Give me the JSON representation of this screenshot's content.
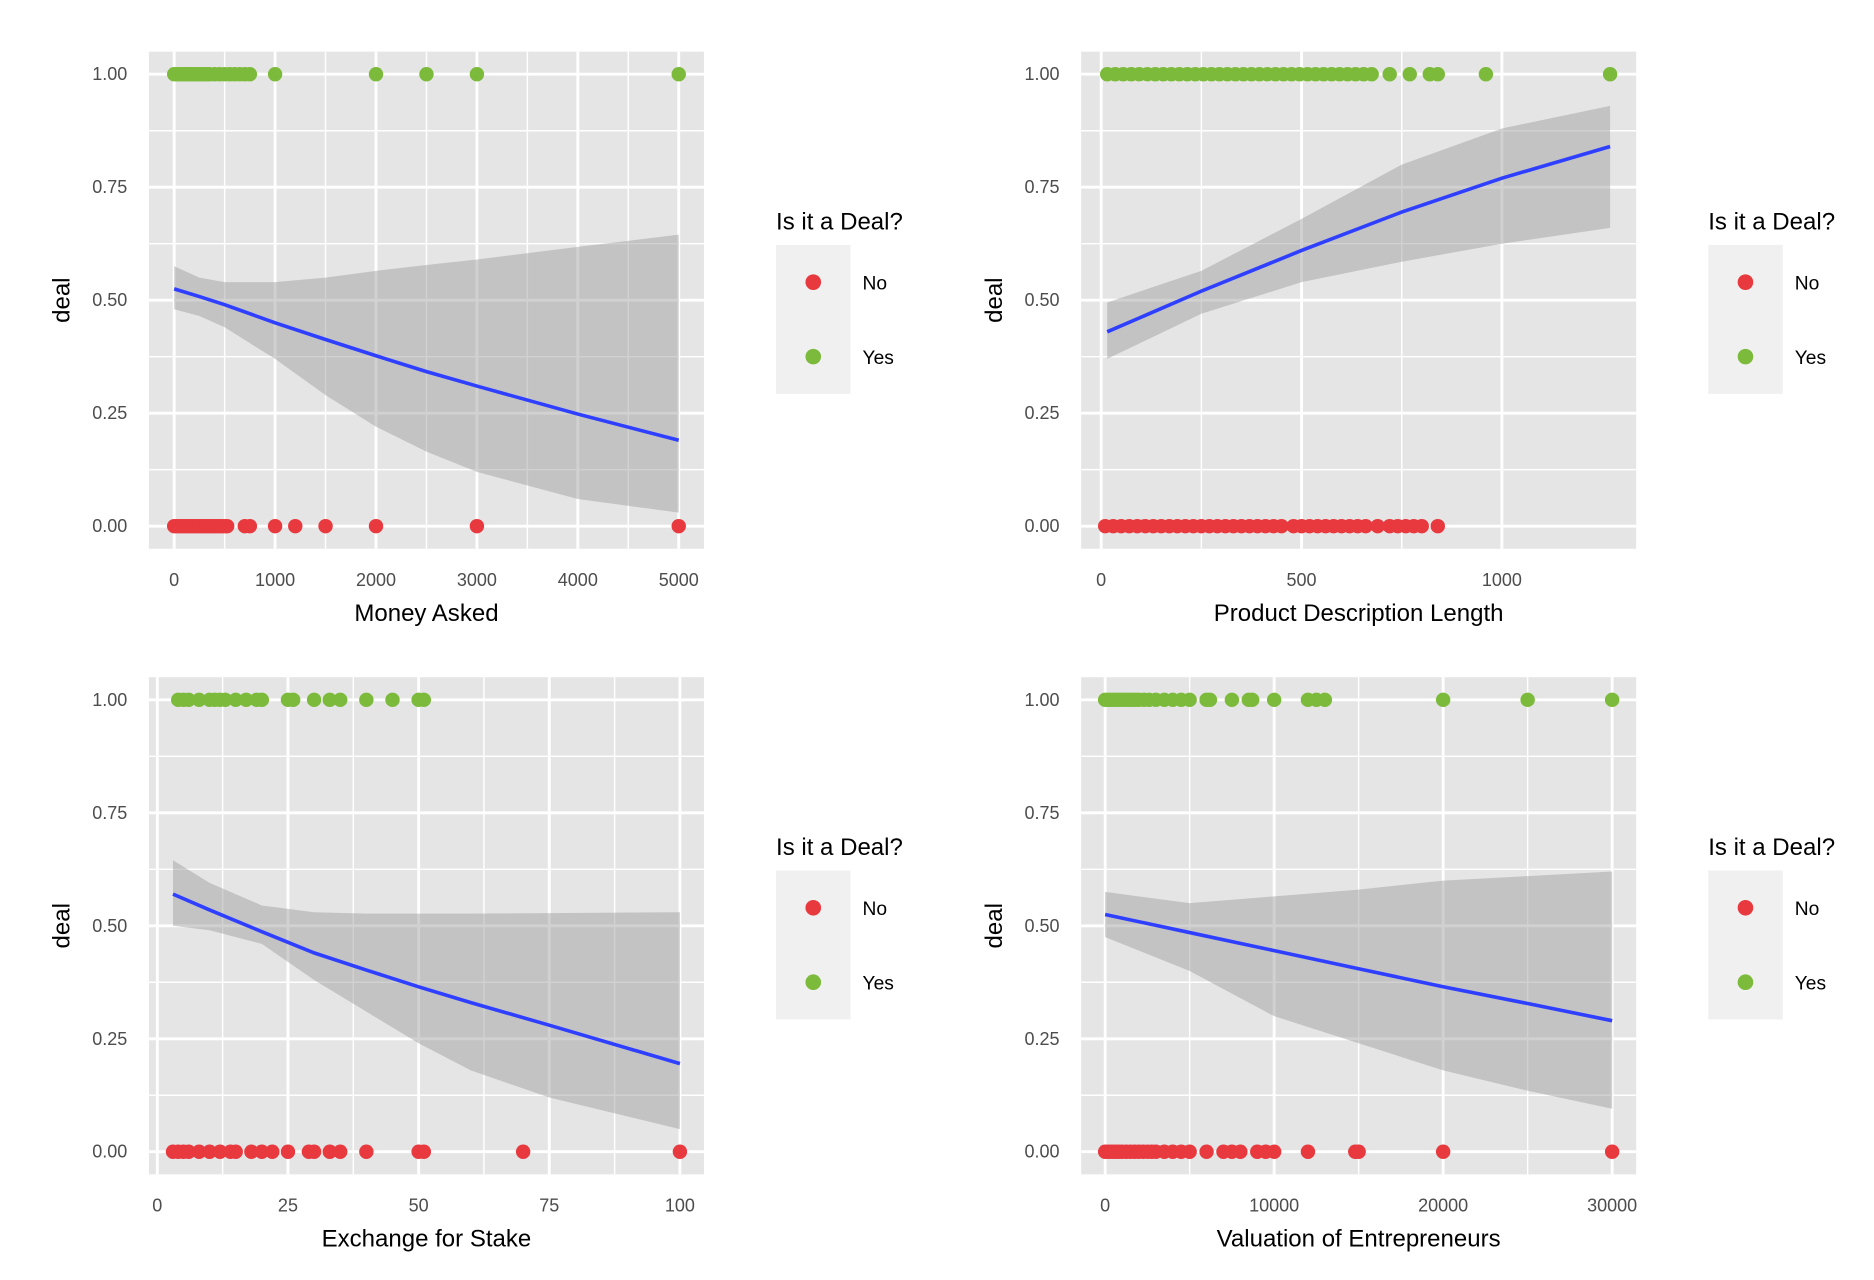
{
  "colors": {
    "no": "#e8393f",
    "yes": "#7cba3b",
    "fit": "#2f3fff",
    "ribbon": "#999999",
    "panel": "#e5e5e5",
    "grid": "#ffffff"
  },
  "chart_data": [
    {
      "type": "scatter",
      "xlabel": "Money Asked",
      "ylabel": "deal",
      "xlim": [
        -250,
        5250
      ],
      "ylim": [
        -0.05,
        1.05
      ],
      "xticks": [
        0,
        1000,
        2000,
        3000,
        4000,
        5000
      ],
      "xtick_labels": [
        "0",
        "1000",
        "2000",
        "3000",
        "4000",
        "5000"
      ],
      "yticks": [
        0,
        0.25,
        0.5,
        0.75,
        1
      ],
      "ytick_labels": [
        "0.00",
        "0.25",
        "0.50",
        "0.75",
        "1.00"
      ],
      "grid": true,
      "legend": {
        "title": "Is it a Deal?",
        "items": [
          "No",
          "Yes"
        ],
        "placement": "right"
      },
      "series": [
        {
          "name": "No",
          "y": 0,
          "x": [
            0,
            25,
            50,
            75,
            100,
            125,
            150,
            175,
            200,
            225,
            250,
            275,
            300,
            325,
            350,
            375,
            400,
            425,
            450,
            475,
            500,
            525,
            700,
            750,
            1000,
            1200,
            1500,
            2000,
            3000,
            5000
          ]
        },
        {
          "name": "Yes",
          "y": 1,
          "x": [
            0,
            25,
            50,
            75,
            100,
            125,
            150,
            175,
            200,
            225,
            250,
            275,
            300,
            325,
            350,
            400,
            450,
            500,
            550,
            600,
            650,
            700,
            750,
            1000,
            2000,
            2500,
            3000,
            5000
          ]
        }
      ],
      "fit": {
        "x": [
          0,
          250,
          500,
          1000,
          1500,
          2000,
          2500,
          3000,
          4000,
          5000
        ],
        "y": [
          0.525,
          0.508,
          0.49,
          0.45,
          0.413,
          0.377,
          0.342,
          0.31,
          0.248,
          0.19
        ],
        "lower": [
          0.48,
          0.465,
          0.44,
          0.37,
          0.29,
          0.22,
          0.165,
          0.12,
          0.06,
          0.03
        ],
        "upper": [
          0.575,
          0.55,
          0.54,
          0.54,
          0.55,
          0.565,
          0.578,
          0.59,
          0.618,
          0.645
        ]
      }
    },
    {
      "type": "scatter",
      "xlabel": "Product Description Length",
      "ylabel": "deal",
      "xlim": [
        -50,
        1335
      ],
      "ylim": [
        -0.05,
        1.05
      ],
      "xticks": [
        0,
        500,
        1000
      ],
      "xtick_labels": [
        "0",
        "500",
        "1000"
      ],
      "yticks": [
        0,
        0.25,
        0.5,
        0.75,
        1
      ],
      "ytick_labels": [
        "0.00",
        "0.25",
        "0.50",
        "0.75",
        "1.00"
      ],
      "grid": true,
      "legend": {
        "title": "Is it a Deal?",
        "items": [
          "No",
          "Yes"
        ],
        "placement": "right"
      },
      "series": [
        {
          "name": "No",
          "y": 0,
          "x": [
            10,
            30,
            50,
            70,
            90,
            110,
            130,
            150,
            170,
            190,
            210,
            230,
            250,
            270,
            290,
            310,
            330,
            350,
            370,
            390,
            410,
            430,
            450,
            480,
            500,
            520,
            540,
            560,
            580,
            600,
            620,
            640,
            660,
            690,
            720,
            740,
            760,
            780,
            800,
            840
          ]
        },
        {
          "name": "Yes",
          "y": 1,
          "x": [
            15,
            35,
            55,
            75,
            95,
            115,
            135,
            155,
            175,
            195,
            215,
            235,
            255,
            275,
            295,
            315,
            335,
            355,
            375,
            395,
            415,
            435,
            455,
            475,
            495,
            515,
            535,
            555,
            575,
            595,
            615,
            635,
            655,
            675,
            720,
            770,
            820,
            840,
            960,
            1270
          ]
        }
      ],
      "fit": {
        "x": [
          15,
          250,
          500,
          750,
          1000,
          1270
        ],
        "y": [
          0.43,
          0.52,
          0.61,
          0.695,
          0.77,
          0.84
        ],
        "lower": [
          0.37,
          0.47,
          0.54,
          0.585,
          0.625,
          0.66
        ],
        "upper": [
          0.495,
          0.565,
          0.68,
          0.8,
          0.88,
          0.93
        ]
      }
    },
    {
      "type": "scatter",
      "xlabel": "Exchange for Stake",
      "ylabel": "deal",
      "xlim": [
        -1.6,
        104.6
      ],
      "ylim": [
        -0.05,
        1.05
      ],
      "xticks": [
        0,
        25,
        50,
        75,
        100
      ],
      "xtick_labels": [
        "0",
        "25",
        "50",
        "75",
        "100"
      ],
      "yticks": [
        0,
        0.25,
        0.5,
        0.75,
        1
      ],
      "ytick_labels": [
        "0.00",
        "0.25",
        "0.50",
        "0.75",
        "1.00"
      ],
      "grid": true,
      "legend": {
        "title": "Is it a Deal?",
        "items": [
          "No",
          "Yes"
        ],
        "placement": "right"
      },
      "series": [
        {
          "name": "No",
          "y": 0,
          "x": [
            3,
            4,
            5,
            6,
            8,
            10,
            12,
            14,
            15,
            18,
            20,
            22,
            25,
            29,
            30,
            33,
            35,
            40,
            50,
            51,
            70,
            100
          ]
        },
        {
          "name": "Yes",
          "y": 1,
          "x": [
            4,
            5,
            6,
            8,
            10,
            11,
            12,
            13,
            15,
            17,
            19,
            20,
            25,
            26,
            30,
            33,
            35,
            40,
            45,
            50,
            51
          ]
        }
      ],
      "fit": {
        "x": [
          3,
          10,
          20,
          30,
          40,
          50,
          60,
          75,
          100
        ],
        "y": [
          0.57,
          0.535,
          0.487,
          0.44,
          0.402,
          0.365,
          0.33,
          0.28,
          0.195
        ],
        "lower": [
          0.5,
          0.49,
          0.46,
          0.38,
          0.31,
          0.24,
          0.18,
          0.12,
          0.05
        ],
        "upper": [
          0.645,
          0.595,
          0.545,
          0.53,
          0.527,
          0.527,
          0.527,
          0.528,
          0.53
        ]
      }
    },
    {
      "type": "scatter",
      "xlabel": "Valuation of Entrepreneurs",
      "ylabel": "deal",
      "xlim": [
        -1420,
        31420
      ],
      "ylim": [
        -0.05,
        1.05
      ],
      "xticks": [
        0,
        10000,
        20000,
        30000
      ],
      "xtick_labels": [
        "0",
        "10000",
        "20000",
        "30000"
      ],
      "yticks": [
        0,
        0.25,
        0.5,
        0.75,
        1
      ],
      "ytick_labels": [
        "0.00",
        "0.25",
        "0.50",
        "0.75",
        "1.00"
      ],
      "grid": true,
      "legend": {
        "title": "Is it a Deal?",
        "items": [
          "No",
          "Yes"
        ],
        "placement": "right"
      },
      "series": [
        {
          "name": "No",
          "y": 0,
          "x": [
            0,
            200,
            400,
            600,
            800,
            1000,
            1250,
            1500,
            1750,
            2000,
            2250,
            2500,
            2750,
            3000,
            3500,
            4000,
            4500,
            5000,
            6000,
            7000,
            7500,
            8000,
            9000,
            9500,
            10000,
            12000,
            14800,
            15000,
            20000,
            30000
          ]
        },
        {
          "name": "Yes",
          "y": 1,
          "x": [
            0,
            200,
            400,
            600,
            800,
            1000,
            1200,
            1400,
            1600,
            1800,
            2000,
            2300,
            2600,
            3000,
            3500,
            4000,
            4500,
            5000,
            6000,
            6200,
            7500,
            8500,
            8700,
            10000,
            12000,
            12500,
            13000,
            20000,
            25000,
            30000
          ]
        }
      ],
      "fit": {
        "x": [
          0,
          5000,
          10000,
          15000,
          20000,
          25000,
          30000
        ],
        "y": [
          0.525,
          0.485,
          0.445,
          0.405,
          0.365,
          0.328,
          0.29
        ],
        "lower": [
          0.475,
          0.4,
          0.3,
          0.24,
          0.18,
          0.135,
          0.095
        ],
        "upper": [
          0.575,
          0.55,
          0.565,
          0.58,
          0.6,
          0.61,
          0.62
        ]
      }
    }
  ]
}
